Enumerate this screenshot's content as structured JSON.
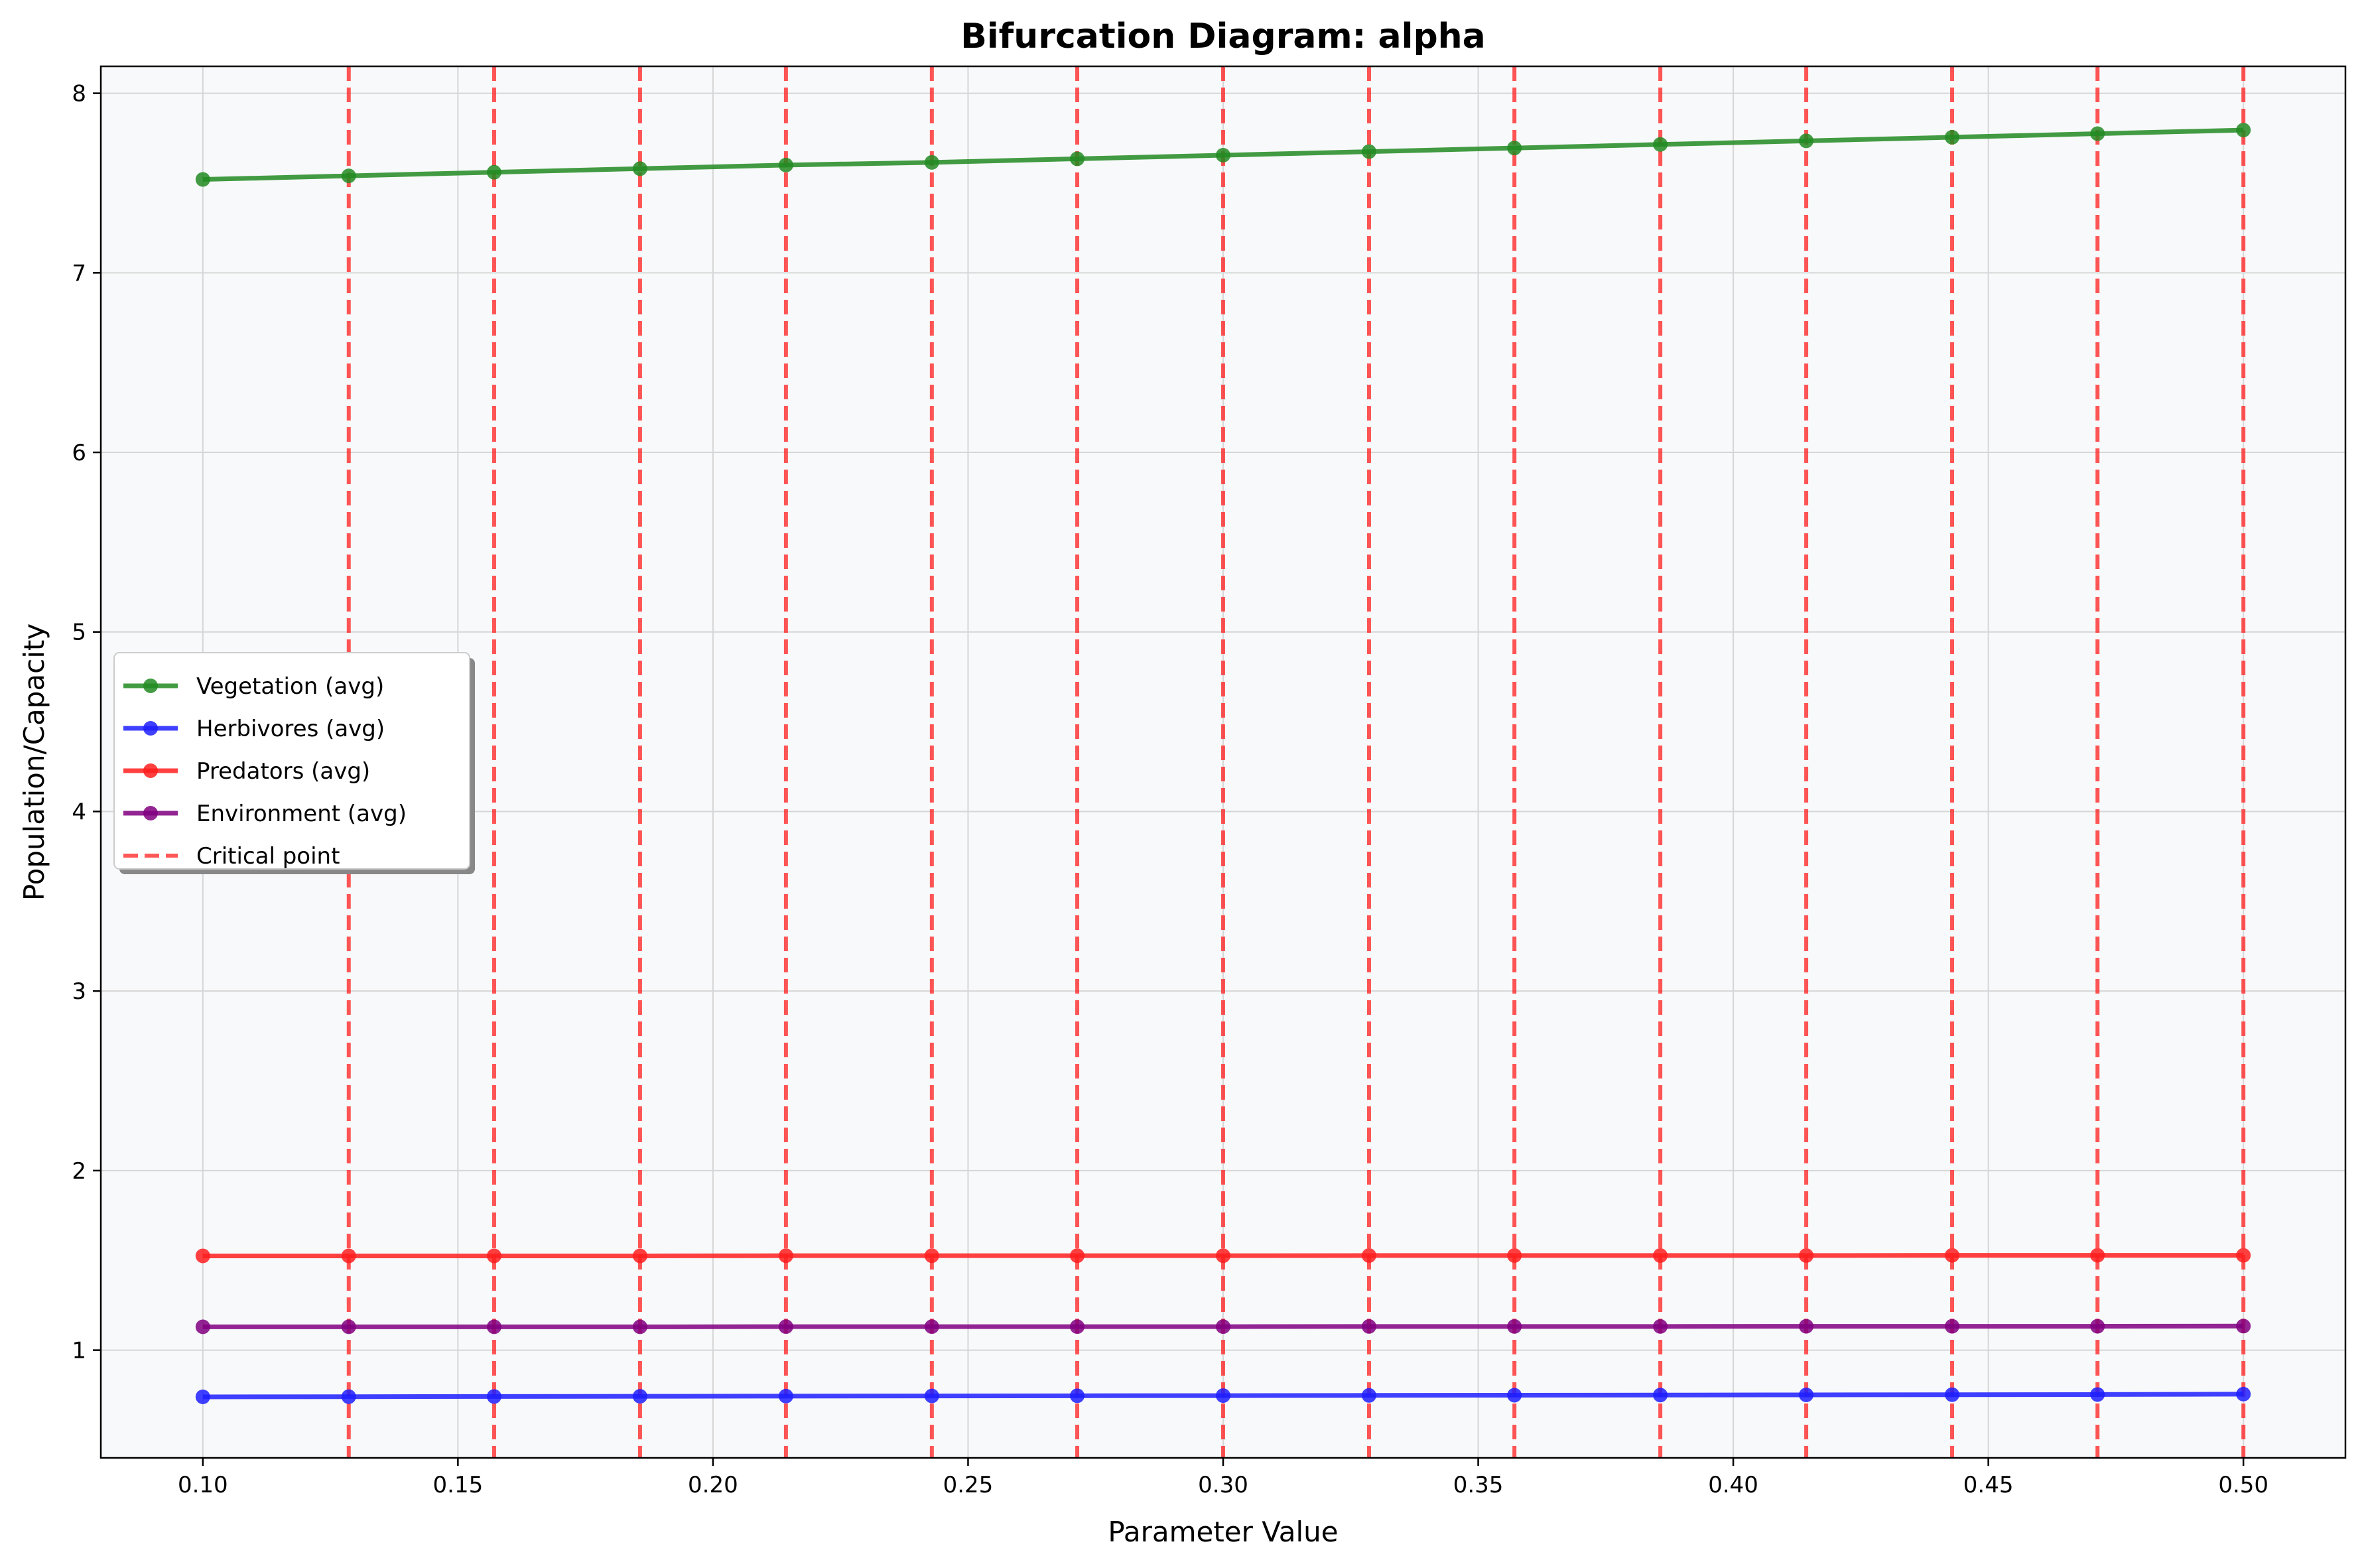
{
  "chart_data": {
    "type": "line",
    "title": "Bifurcation Diagram: alpha",
    "xlabel": "Parameter Value",
    "ylabel": "Population/Capacity",
    "xlim": [
      0.08,
      0.52
    ],
    "ylim": [
      0.4,
      8.15
    ],
    "x_ticks": [
      "0.10",
      "0.15",
      "0.20",
      "0.25",
      "0.30",
      "0.35",
      "0.40",
      "0.45",
      "0.50"
    ],
    "y_ticks": [
      "1",
      "2",
      "3",
      "4",
      "5",
      "6",
      "7",
      "8"
    ],
    "grid": true,
    "legend_position": "center-left",
    "x": [
      0.1,
      0.1286,
      0.1571,
      0.1857,
      0.2143,
      0.2429,
      0.2714,
      0.3,
      0.3286,
      0.3571,
      0.3857,
      0.4143,
      0.4429,
      0.4714,
      0.5
    ],
    "series": [
      {
        "name": "Vegetation (avg)",
        "color": "#228b22",
        "style": "solid-marker",
        "values": [
          7.52,
          7.54,
          7.56,
          7.58,
          7.6,
          7.615,
          7.635,
          7.655,
          7.675,
          7.695,
          7.715,
          7.735,
          7.755,
          7.775,
          7.795
        ]
      },
      {
        "name": "Herbivores (avg)",
        "color": "#1f1fff",
        "style": "solid-marker",
        "values": [
          0.74,
          0.741,
          0.742,
          0.743,
          0.744,
          0.745,
          0.746,
          0.747,
          0.748,
          0.749,
          0.75,
          0.751,
          0.752,
          0.753,
          0.755
        ]
      },
      {
        "name": "Predators (avg)",
        "color": "#ff1f1f",
        "style": "solid-marker",
        "values": [
          1.525,
          1.525,
          1.525,
          1.525,
          1.526,
          1.526,
          1.526,
          1.526,
          1.527,
          1.527,
          1.527,
          1.527,
          1.528,
          1.528,
          1.528
        ]
      },
      {
        "name": "Environment (avg)",
        "color": "#800080",
        "style": "solid-marker",
        "values": [
          1.13,
          1.13,
          1.13,
          1.13,
          1.131,
          1.131,
          1.131,
          1.131,
          1.132,
          1.132,
          1.132,
          1.133,
          1.133,
          1.133,
          1.134
        ]
      }
    ],
    "critical_points": {
      "name": "Critical point",
      "color": "#ff1f1f",
      "x": [
        0.1286,
        0.1571,
        0.1857,
        0.2143,
        0.2429,
        0.2714,
        0.3,
        0.3286,
        0.3571,
        0.3857,
        0.4143,
        0.4429,
        0.4714,
        0.5
      ]
    }
  }
}
